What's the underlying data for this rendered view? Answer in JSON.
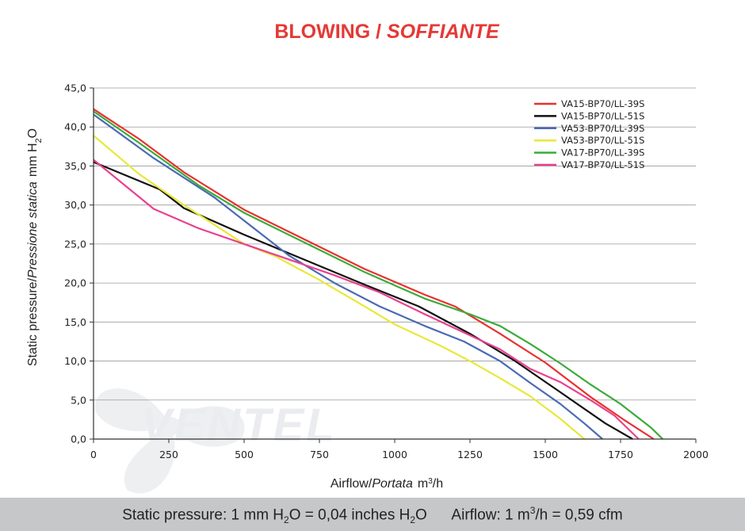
{
  "header": {
    "title_main": "BLOWING",
    "title_sep": " / ",
    "title_italic": "SOFFIANTE"
  },
  "watermark": {
    "brand": "VENTEL"
  },
  "axes": {
    "x_label": "Airflow",
    "x_label_sep": "/",
    "x_label_italic": "Portata",
    "x_unit": "m",
    "x_unit_sup": "3",
    "x_unit_tail": "/h",
    "y_label": "Static pressure",
    "y_label_sep": "/",
    "y_label_italic": "Pressione statica",
    "y_unit": "mm H",
    "y_unit_sub": "2",
    "y_unit_tail": "O"
  },
  "footer": {
    "p1": "Static pressure: 1 mm H",
    "s1": "2",
    "p2": "O = 0,04 inches H",
    "s2": "2",
    "p3": "O      Airflow: 1 m",
    "s3": "3",
    "p4": "/h = 0,59 cfm"
  },
  "chart_data": {
    "type": "line",
    "title": "BLOWING / SOFFIANTE",
    "xlabel": "Airflow / Portata m³/h",
    "ylabel": "Static pressure / Pressione statica mm H₂O",
    "xlim": [
      0,
      2000
    ],
    "ylim": [
      0,
      45
    ],
    "x_ticks": [
      "0",
      "250",
      "500",
      "750",
      "1000",
      "1250",
      "1500",
      "1750",
      "2000"
    ],
    "y_ticks": [
      "0,0",
      "5,0",
      "10,0",
      "15,0",
      "20,0",
      "25,0",
      "30,0",
      "35,0",
      "40,0",
      "45,0"
    ],
    "grid": "horizontal",
    "legend_position": "top-right",
    "series": [
      {
        "name": "VA15-BP70/LL-39S",
        "color": "#e8312f",
        "points": [
          [
            0,
            42.3
          ],
          [
            150,
            38.5
          ],
          [
            300,
            34.2
          ],
          [
            500,
            29.4
          ],
          [
            700,
            25.6
          ],
          [
            900,
            21.8
          ],
          [
            1100,
            18.5
          ],
          [
            1200,
            17.0
          ],
          [
            1350,
            13.5
          ],
          [
            1500,
            9.8
          ],
          [
            1650,
            5.4
          ],
          [
            1760,
            2.5
          ],
          [
            1860,
            0
          ]
        ]
      },
      {
        "name": "VA15-BP70/LL-51S",
        "color": "#111111",
        "points": [
          [
            0,
            35.5
          ],
          [
            220,
            32.0
          ],
          [
            300,
            29.6
          ],
          [
            500,
            26.2
          ],
          [
            700,
            23.0
          ],
          [
            900,
            19.8
          ],
          [
            1080,
            17.0
          ],
          [
            1250,
            13.5
          ],
          [
            1400,
            10.0
          ],
          [
            1550,
            6.0
          ],
          [
            1700,
            2.0
          ],
          [
            1790,
            0
          ]
        ]
      },
      {
        "name": "VA53-BP70/LL-39S",
        "color": "#4a6ab5",
        "points": [
          [
            0,
            41.6
          ],
          [
            200,
            36.0
          ],
          [
            400,
            31.0
          ],
          [
            500,
            28.0
          ],
          [
            650,
            23.5
          ],
          [
            800,
            20.0
          ],
          [
            950,
            17.0
          ],
          [
            1100,
            14.5
          ],
          [
            1230,
            12.5
          ],
          [
            1350,
            10.0
          ],
          [
            1450,
            7.2
          ],
          [
            1550,
            4.5
          ],
          [
            1630,
            2.0
          ],
          [
            1690,
            0
          ]
        ]
      },
      {
        "name": "VA53-BP70/LL-51S",
        "color": "#e8e83a",
        "points": [
          [
            0,
            38.9
          ],
          [
            150,
            34.0
          ],
          [
            300,
            30.0
          ],
          [
            500,
            25.0
          ],
          [
            600,
            23.5
          ],
          [
            750,
            20.4
          ],
          [
            900,
            17.0
          ],
          [
            1000,
            14.7
          ],
          [
            1150,
            12.0
          ],
          [
            1250,
            10.0
          ],
          [
            1350,
            7.8
          ],
          [
            1450,
            5.5
          ],
          [
            1550,
            2.6
          ],
          [
            1630,
            0
          ]
        ]
      },
      {
        "name": "VA17-BP70/LL-39S",
        "color": "#3aab3a",
        "points": [
          [
            0,
            42.0
          ],
          [
            150,
            38.0
          ],
          [
            350,
            32.5
          ],
          [
            500,
            29.0
          ],
          [
            700,
            25.2
          ],
          [
            900,
            21.4
          ],
          [
            1100,
            18.0
          ],
          [
            1250,
            16.0
          ],
          [
            1350,
            14.5
          ],
          [
            1450,
            12.2
          ],
          [
            1550,
            9.7
          ],
          [
            1650,
            7.0
          ],
          [
            1750,
            4.5
          ],
          [
            1850,
            1.5
          ],
          [
            1890,
            0
          ]
        ]
      },
      {
        "name": "VA17-BP70/LL-51S",
        "color": "#e8418e",
        "points": [
          [
            0,
            35.8
          ],
          [
            200,
            29.5
          ],
          [
            350,
            27.0
          ],
          [
            500,
            25.0
          ],
          [
            650,
            23.0
          ],
          [
            800,
            21.0
          ],
          [
            950,
            18.8
          ],
          [
            1100,
            16.0
          ],
          [
            1250,
            13.3
          ],
          [
            1350,
            11.5
          ],
          [
            1450,
            9.0
          ],
          [
            1550,
            7.3
          ],
          [
            1650,
            5.0
          ],
          [
            1730,
            3.0
          ],
          [
            1810,
            0
          ]
        ]
      }
    ]
  }
}
